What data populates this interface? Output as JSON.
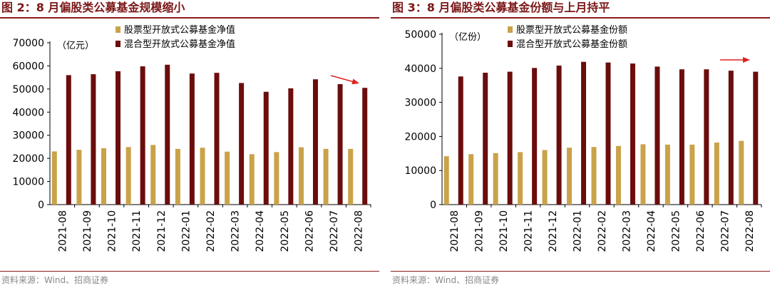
{
  "chart_data": [
    {
      "type": "bar",
      "title": "图 2：8 月偏股类公募基金规模缩小",
      "unit_label": "（亿元）",
      "categories": [
        "2021-08",
        "2021-09",
        "2021-10",
        "2021-11",
        "2021-12",
        "2022-01",
        "2022-02",
        "2022-03",
        "2022-04",
        "2022-05",
        "2022-06",
        "2022-07",
        "2022-08"
      ],
      "series": [
        {
          "name": "股票型开放式公募基金净值",
          "color": "#c9a24a",
          "values": [
            23000,
            23700,
            24400,
            24900,
            25800,
            24100,
            24600,
            22900,
            21800,
            22700,
            24800,
            24100,
            24100
          ]
        },
        {
          "name": "混合型开放式公募基金净值",
          "color": "#6b0d0d",
          "values": [
            56000,
            56400,
            57700,
            59800,
            60500,
            56700,
            57000,
            52600,
            48800,
            50300,
            54200,
            52100,
            50500
          ]
        }
      ],
      "ylim": [
        0,
        70000
      ],
      "yticks": [
        0,
        10000,
        20000,
        30000,
        40000,
        50000,
        60000,
        70000
      ],
      "legend": "top-left",
      "source": "资料来源：Wind、招商证券"
    },
    {
      "type": "bar",
      "title": "图 3：8 月偏股类公募基金份额与上月持平",
      "unit_label": "（亿份）",
      "categories": [
        "2021-08",
        "2021-09",
        "2021-10",
        "2021-11",
        "2021-12",
        "2022-01",
        "2022-02",
        "2022-03",
        "2022-04",
        "2022-05",
        "2022-06",
        "2022-07",
        "2022-08"
      ],
      "series": [
        {
          "name": "股票型开放式公募基金份额",
          "color": "#c9a24a",
          "values": [
            14200,
            14800,
            15100,
            15400,
            16000,
            16700,
            16900,
            17200,
            17700,
            17600,
            17600,
            18200,
            18700
          ]
        },
        {
          "name": "混合型开放式公募基金份额",
          "color": "#6b0d0d",
          "values": [
            37600,
            38700,
            39000,
            40100,
            40800,
            41900,
            41700,
            41400,
            40500,
            39700,
            39700,
            39300,
            39000
          ]
        }
      ],
      "ylim": [
        0,
        50000
      ],
      "yticks": [
        0,
        10000,
        20000,
        30000,
        40000,
        50000
      ],
      "legend": "top-left",
      "source": "资料来源：Wind、招商证券"
    }
  ],
  "annotation_color": "#e02020"
}
